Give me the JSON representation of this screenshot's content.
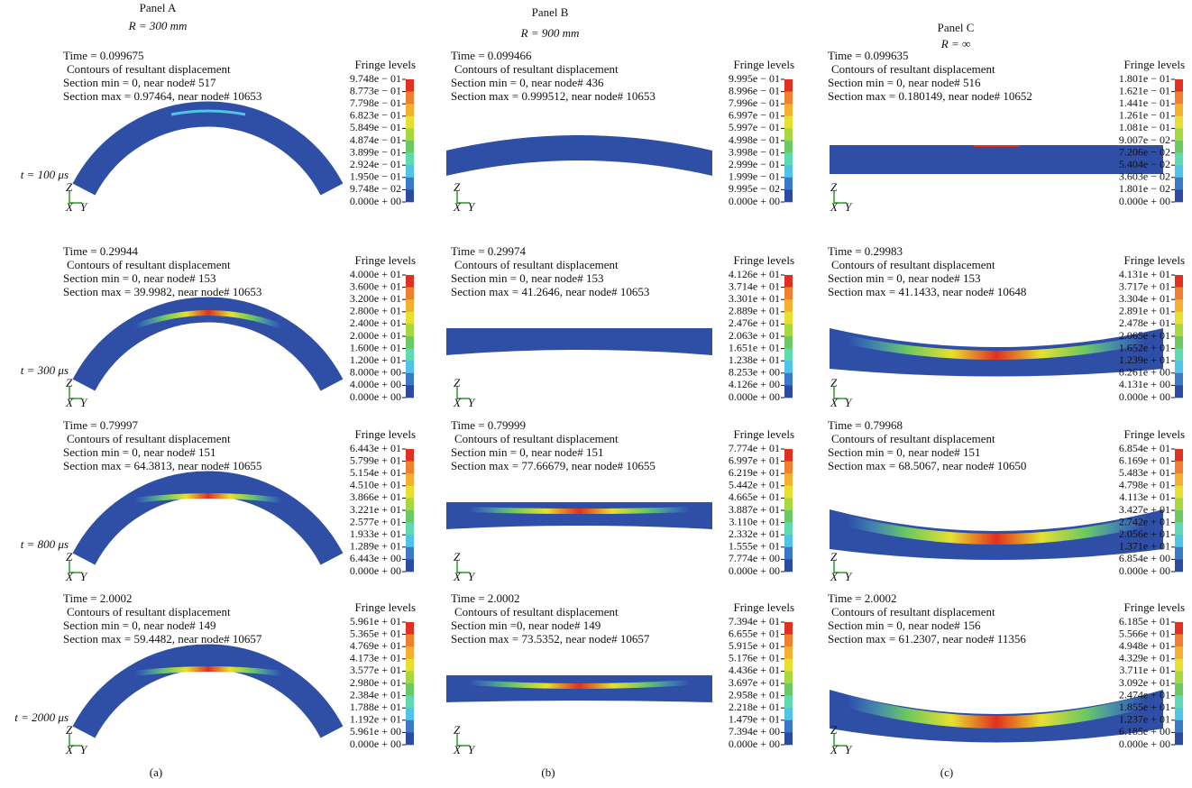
{
  "columns": [
    {
      "title": "Panel A",
      "radius": "R = 300 mm",
      "caption": "(a)",
      "panels": [
        {
          "time_label": "t = 100 μs",
          "time": "Time = 0.099675",
          "contour": "Contours of resultant displacement",
          "section_min": "Section min = 0, near node# 517",
          "section_max": "Section max = 0.97464, near node# 10653",
          "fringe_title": "Fringe levels",
          "fringe_levels": [
            "9.748e − 01",
            "8.773e − 01",
            "7.798e − 01",
            "6.823e − 01",
            "5.849e − 01",
            "4.874e − 01",
            "3.899e − 01",
            "2.924e − 01",
            "1.950e − 01",
            "9.748e − 02",
            "0.000e + 00"
          ]
        },
        {
          "time_label": "t = 300 μs",
          "time": "Time = 0.29944",
          "contour": "Contours of resultant displacement",
          "section_min": "Section min = 0, near node# 153",
          "section_max": "Section max = 39.9982, near node# 10653",
          "fringe_title": "Fringe levels",
          "fringe_levels": [
            "4.000e + 01",
            "3.600e + 01",
            "3.200e + 01",
            "2.800e + 01",
            "2.400e + 01",
            "2.000e + 01",
            "1.600e + 01",
            "1.200e + 01",
            "8.000e + 00",
            "4.000e + 00",
            "0.000e + 00"
          ]
        },
        {
          "time_label": "t = 800 μs",
          "time": "Time = 0.79997",
          "contour": "Contours of resultant displacement",
          "section_min": "Section min = 0, near node# 151",
          "section_max": "Section max = 64.3813, near node# 10655",
          "fringe_title": "Fringe levels",
          "fringe_levels": [
            "6.443e + 01",
            "5.799e + 01",
            "5.154e + 01",
            "4.510e + 01",
            "3.866e + 01",
            "3.221e + 01",
            "2.577e + 01",
            "1.933e + 01",
            "1.289e + 01",
            "6.443e + 00",
            "0.000e + 00"
          ]
        },
        {
          "time_label": "t = 2000 μs",
          "time": "Time = 2.0002",
          "contour": "Contours of resultant displacement",
          "section_min": "Section min = 0, near node# 149",
          "section_max": "Section max = 59.4482, near node# 10657",
          "fringe_title": "Fringe levels",
          "fringe_levels": [
            "5.961e + 01",
            "5.365e + 01",
            "4.769e + 01",
            "4.173e + 01",
            "3.577e + 01",
            "2.980e + 01",
            "2.384e + 01",
            "1.788e + 01",
            "1.192e + 01",
            "5.961e + 00",
            "0.000e + 00"
          ]
        }
      ]
    },
    {
      "title": "Panel B",
      "radius": "R = 900 mm",
      "caption": "(b)",
      "panels": [
        {
          "time": "Time = 0.099466",
          "contour": "Contours of resultant displacement",
          "section_min": "Section min = 0, near node# 436",
          "section_max": "Section max = 0.999512, near node# 10653",
          "fringe_title": "Fringe levels",
          "fringe_levels": [
            "9.995e − 01",
            "8.996e − 01",
            "7.996e − 01",
            "6.997e − 01",
            "5.997e − 01",
            "4.998e − 01",
            "3.998e − 01",
            "2.999e − 01",
            "1.999e − 01",
            "9.995e − 02",
            "0.000e + 00"
          ]
        },
        {
          "time": "Time = 0.29974",
          "contour": "Contours of resultant displacement",
          "section_min": "Section min = 0, near node# 153",
          "section_max": "Section max = 41.2646, near node# 10653",
          "fringe_title": "Fringe levels",
          "fringe_levels": [
            "4.126e + 01",
            "3.714e + 01",
            "3.301e + 01",
            "2.889e + 01",
            "2.476e + 01",
            "2.063e + 01",
            "1.651e + 01",
            "1.238e + 01",
            "8.253e + 00",
            "4.126e + 00",
            "0.000e + 00"
          ]
        },
        {
          "time": "Time = 0.79999",
          "contour": "Contours of resultant displacement",
          "section_min": "Section min = 0, near node# 151",
          "section_max": "Section max = 77.66679, near node# 10655",
          "fringe_title": "Fringe levels",
          "fringe_levels": [
            "7.774e + 01",
            "6.997e + 01",
            "6.219e + 01",
            "5.442e + 01",
            "4.665e + 01",
            "3.887e + 01",
            "3.110e + 01",
            "2.332e + 01",
            "1.555e + 01",
            "7.774e + 00",
            "0.000e + 00"
          ]
        },
        {
          "time": "Time = 2.0002",
          "contour": "Contours of resultant displacement",
          "section_min": "Section min =0, near node# 149",
          "section_max": "Section max = 73.5352, near node# 10657",
          "fringe_title": "Fringe levels",
          "fringe_levels": [
            "7.394e + 01",
            "6.655e + 01",
            "5.915e + 01",
            "5.176e + 01",
            "4.436e + 01",
            "3.697e + 01",
            "2.958e + 01",
            "2.218e + 01",
            "1.479e + 01",
            "7.394e + 00",
            "0.000e + 00"
          ]
        }
      ]
    },
    {
      "title": "Panel C",
      "radius": "R = ∞",
      "caption": "(c)",
      "panels": [
        {
          "time": "Time = 0.099635",
          "contour": "Contours of resultant displacement",
          "section_min": "Section min = 0, near node# 516",
          "section_max": "Section max = 0.180149, near node# 10652",
          "fringe_title": "Fringe levels",
          "fringe_levels": [
            "1.801e − 01",
            "1.621e − 01",
            "1.441e − 01",
            "1.261e − 01",
            "1.081e − 01",
            "9.007e − 02",
            "7.206e − 02",
            "5.404e − 02",
            "3.603e − 02",
            "1.801e − 02",
            "0.000e + 00"
          ]
        },
        {
          "time": "Time = 0.29983",
          "contour": "Contours of resultant displacement",
          "section_min": "Section min = 0, near node# 153",
          "section_max": "Section max = 41.1433, near node# 10648",
          "fringe_title": "Fringe levels",
          "fringe_levels": [
            "4.131e + 01",
            "3.717e + 01",
            "3.304e + 01",
            "2.891e + 01",
            "2.478e + 01",
            "2.065e + 01",
            "1.652e + 01",
            "1.239e + 01",
            "8.261e + 00",
            "4.131e + 00",
            "0.000e + 00"
          ]
        },
        {
          "time": "Time = 0.79968",
          "contour": "Contours of resultant displacement",
          "section_min": "Section min = 0, near node# 151",
          "section_max": "Section max = 68.5067, near node# 10650",
          "fringe_title": "Fringe levels",
          "fringe_levels": [
            "6.854e + 01",
            "6.169e + 01",
            "5.483e + 01",
            "4.798e + 01",
            "4.113e + 01",
            "3.427e + 01",
            "2.742e + 01",
            "2.056e + 01",
            "1.371e + 01",
            "6.854e + 00",
            "0.000e + 00"
          ]
        },
        {
          "time": "Time = 2.0002",
          "contour": "Contours of resultant displacement",
          "section_min": "Section min = 0, near node# 156",
          "section_max": "Section max = 61.2307, near node# 11356",
          "fringe_title": "Fringe levels",
          "fringe_levels": [
            "6.185e + 01",
            "5.566e + 01",
            "4.948e + 01",
            "4.329e + 01",
            "3.711e + 01",
            "3.092e + 01",
            "2.474e + 01",
            "1.855e + 01",
            "1.237e + 01",
            "6.185e + 00",
            "0.000e + 00"
          ]
        }
      ]
    }
  ],
  "axes": {
    "z": "Z",
    "x": "X",
    "y": "Y"
  }
}
